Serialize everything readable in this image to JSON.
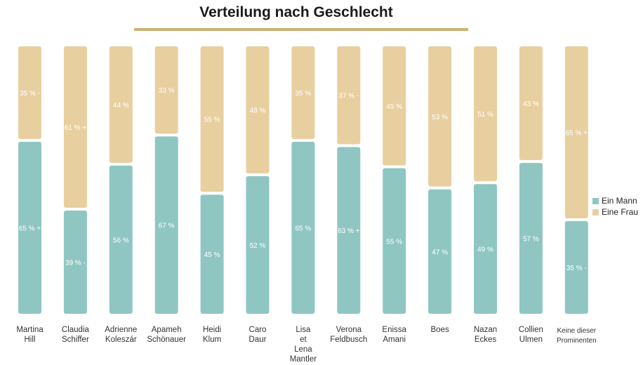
{
  "chart_data": {
    "type": "bar",
    "stacked": true,
    "title": "Verteilung nach Geschlecht",
    "categories": [
      [
        "Martina",
        "Hill"
      ],
      [
        "Claudia",
        "Schiffer"
      ],
      [
        "Adrienne",
        "Koleszár"
      ],
      [
        "Apameh",
        "Schönauer"
      ],
      [
        "Heidi",
        "Klum"
      ],
      [
        "Caro",
        "Daur"
      ],
      [
        "Lisa",
        "et",
        "Lena",
        "Mantler"
      ],
      [
        "Verona",
        "Feldbusch"
      ],
      [
        "Enissa",
        "Amani"
      ],
      [
        "Boes"
      ],
      [
        "Nazan",
        "Eckes"
      ],
      [
        "Collien",
        "Ulmen"
      ],
      [
        "Keine dieser",
        "Prominenten"
      ]
    ],
    "series": [
      {
        "name": "Ein Mann",
        "color": "#8fc6c2",
        "values": [
          65,
          39,
          56,
          67,
          45,
          52,
          65,
          63,
          55,
          47,
          49,
          57,
          35
        ],
        "labels": [
          "65 % +",
          "39 % -",
          "56 %",
          "67 %",
          "45 %",
          "52 %",
          "65 %",
          "63 % +",
          "55 %",
          "47 %",
          "49 %",
          "57 %",
          "35 % -"
        ]
      },
      {
        "name": "Eine Frau",
        "color": "#e8cf9f",
        "values": [
          35,
          61,
          44,
          33,
          55,
          48,
          35,
          37,
          45,
          53,
          51,
          43,
          65
        ],
        "labels": [
          "35 % -",
          "61 % +",
          "44 %",
          "33 %",
          "55 %",
          "48 %",
          "35 %",
          "37 % -",
          "45 %",
          "53 %",
          "51 %",
          "43 %",
          "65 % +"
        ]
      }
    ],
    "ylim": [
      0,
      100
    ],
    "grid": false,
    "legend": "right"
  }
}
